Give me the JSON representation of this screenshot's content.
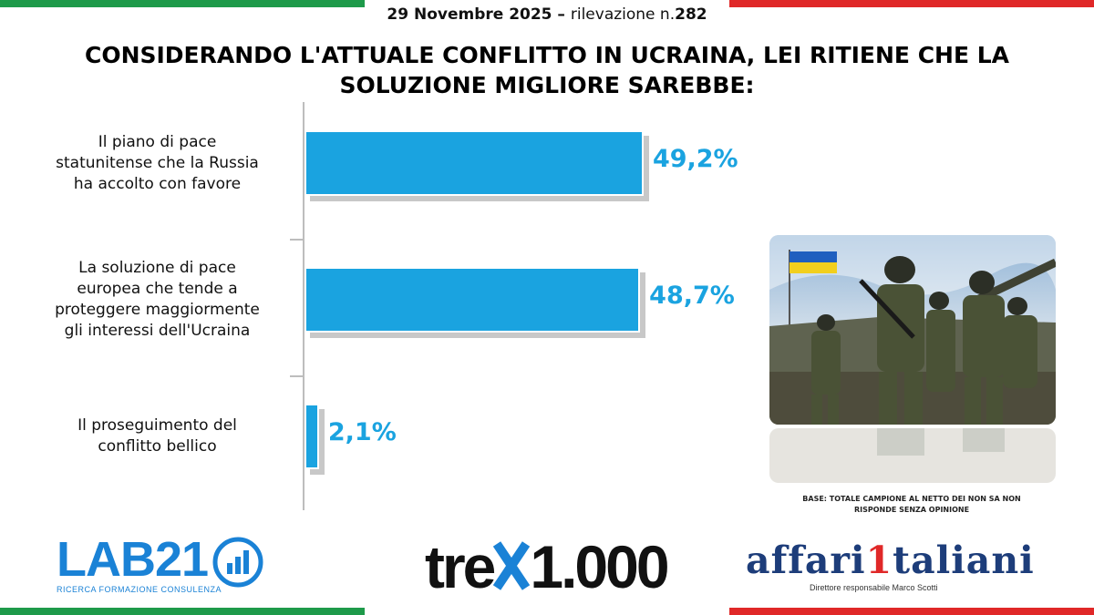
{
  "header": {
    "date": "29 Novembre 2025",
    "separator": " – ",
    "survey": "rilevazione n.",
    "survey_number": "282"
  },
  "chart_data": {
    "type": "bar",
    "orientation": "horizontal",
    "title": "CONSIDERANDO L'ATTUALE CONFLITTO IN UCRAINA, LEI RITIENE CHE LA SOLUZIONE MIGLIORE SAREBBE:",
    "categories": [
      "Il piano di pace statunitense che la Russia ha accolto con favore",
      "La soluzione di pace europea che tende a proteggere maggiormente gli interessi dell'Ucraina",
      "Il proseguimento del conflitto bellico"
    ],
    "category_lines": [
      [
        "Il piano di pace",
        "statunitense che la Russia",
        "ha accolto con favore"
      ],
      [
        "La soluzione di pace",
        "europea che tende a",
        "proteggere maggiormente",
        "gli interessi dell'Ucraina"
      ],
      [
        "Il proseguimento del",
        "conflitto bellico"
      ]
    ],
    "values": [
      49.2,
      48.7,
      2.1
    ],
    "value_labels": [
      "49,2%",
      "48,7%",
      "2,1%"
    ],
    "unit": "%",
    "bar_color": "#1aa3e0",
    "xlim": [
      0,
      50
    ],
    "grid": false
  },
  "note": {
    "line1": "BASE: TOTALE CAMPIONE AL NETTO DEI NON SA NON",
    "line2": "RISPONDE SENZA OPINIONE"
  },
  "logos": {
    "lab21": "LAB21",
    "lab21_tagline": "RICERCA FORMAZIONE CONSULENZA",
    "trex": "tre",
    "trex_number": "1.000",
    "affari": "affari",
    "affari_one": "1",
    "affari_end": "taliani",
    "affari_tagline": "Direttore responsabile Marco Scotti"
  },
  "photo": {
    "subject": "soldiers-with-ukrainian-flag"
  },
  "colors": {
    "flag_green": "#1e9a4a",
    "flag_red": "#e02828",
    "accent": "#1aa3e0"
  }
}
